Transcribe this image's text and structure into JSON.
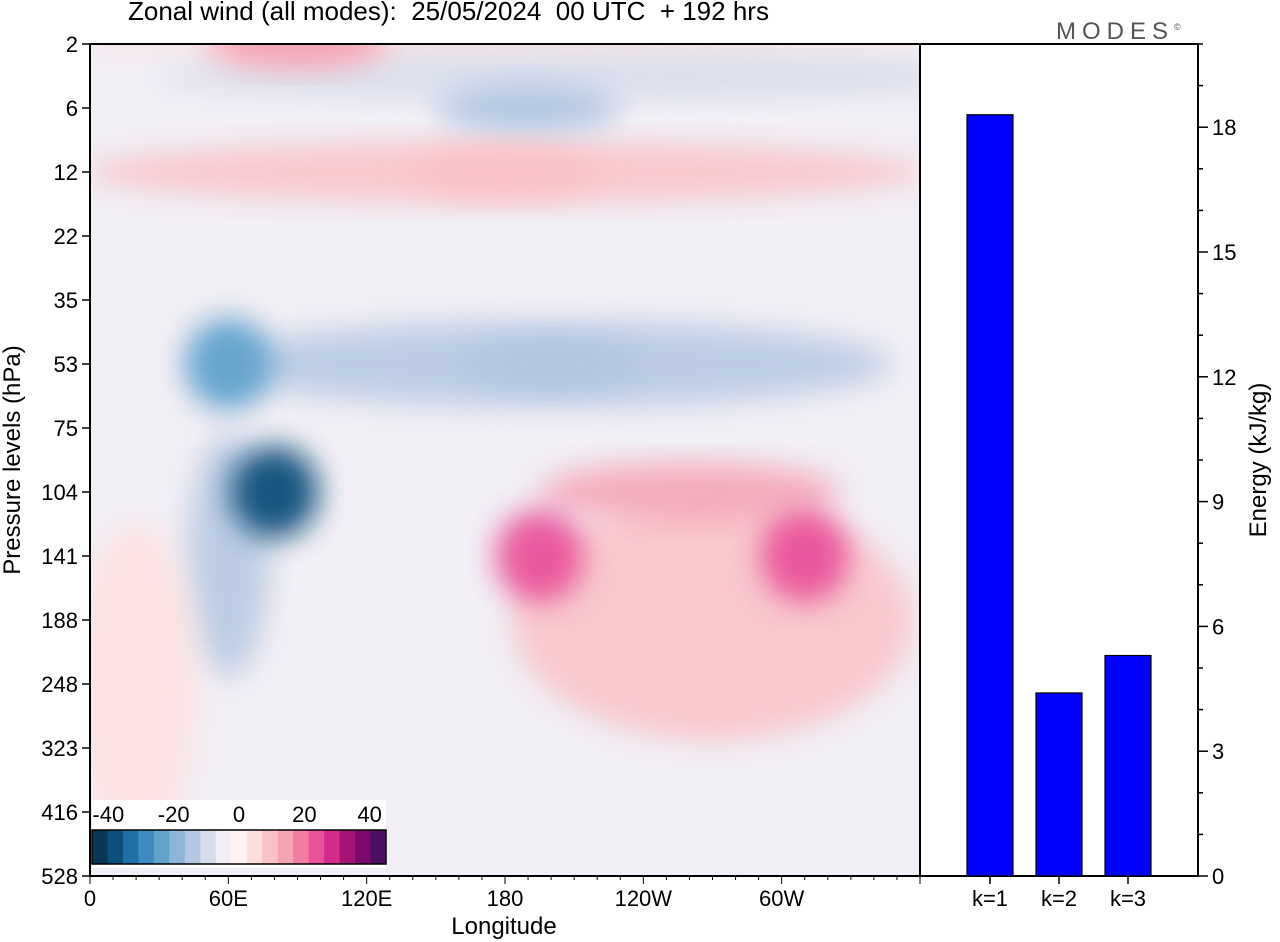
{
  "header": {
    "title": "Zonal wind (all modes):  25/05/2024  00 UTC  + 192 hrs",
    "brand": "MODES",
    "brand_mark": "©"
  },
  "chart_data": [
    {
      "type": "heatmap",
      "xlabel": "Longitude",
      "ylabel": "Pressure levels (hPa)",
      "x_tick_labels": [
        "0",
        "60E",
        "120E",
        "180",
        "120W",
        "60W"
      ],
      "y_tick_labels": [
        "2",
        "6",
        "12",
        "22",
        "35",
        "53",
        "75",
        "104",
        "141",
        "188",
        "248",
        "323",
        "416",
        "528"
      ],
      "colorbar": {
        "tick_labels": [
          "-40",
          "-20",
          "0",
          "20",
          "40"
        ],
        "range": [
          -45,
          45
        ],
        "step": 5,
        "colors": [
          "#0a3553",
          "#0b4f7a",
          "#1f6fa8",
          "#3d8cc1",
          "#62a3cc",
          "#8cb6d6",
          "#b4c7e0",
          "#d8ddeb",
          "#f1eef5",
          "#fff3f2",
          "#fde0de",
          "#f9c2c6",
          "#f6a3b3",
          "#f27da0",
          "#e9529a",
          "#d42b8a",
          "#a61378",
          "#7a0a6c",
          "#4b1064"
        ]
      },
      "features": [
        {
          "label": "easterly band upper",
          "lon": 190,
          "level": "6",
          "u": -15
        },
        {
          "label": "easterly jet left",
          "lon": 60,
          "level": "53",
          "u": -25
        },
        {
          "label": "easterly core",
          "lon": 80,
          "level": "104",
          "u": -40
        },
        {
          "label": "easterly band mid",
          "lon": 200,
          "level": "53",
          "u": -15
        },
        {
          "label": "westerly jet 1",
          "lon": 195,
          "level": "141",
          "u": 25
        },
        {
          "label": "westerly jet 2",
          "lon": 310,
          "level": "141",
          "u": 25
        },
        {
          "label": "westerly band",
          "lon": 180,
          "level": "12",
          "u": 10
        },
        {
          "label": "stratosphere west",
          "lon": 90,
          "level": "2",
          "u": 15
        }
      ]
    },
    {
      "type": "bar",
      "categories": [
        "k=1",
        "k=2",
        "k=3"
      ],
      "values": [
        18.3,
        4.4,
        5.3
      ],
      "ylabel": "Energy (kJ/kg)",
      "ylim": [
        0,
        20
      ],
      "y_tick_labels": [
        "0",
        "3",
        "6",
        "9",
        "12",
        "15",
        "18"
      ],
      "bar_color": "#0000ff"
    }
  ]
}
